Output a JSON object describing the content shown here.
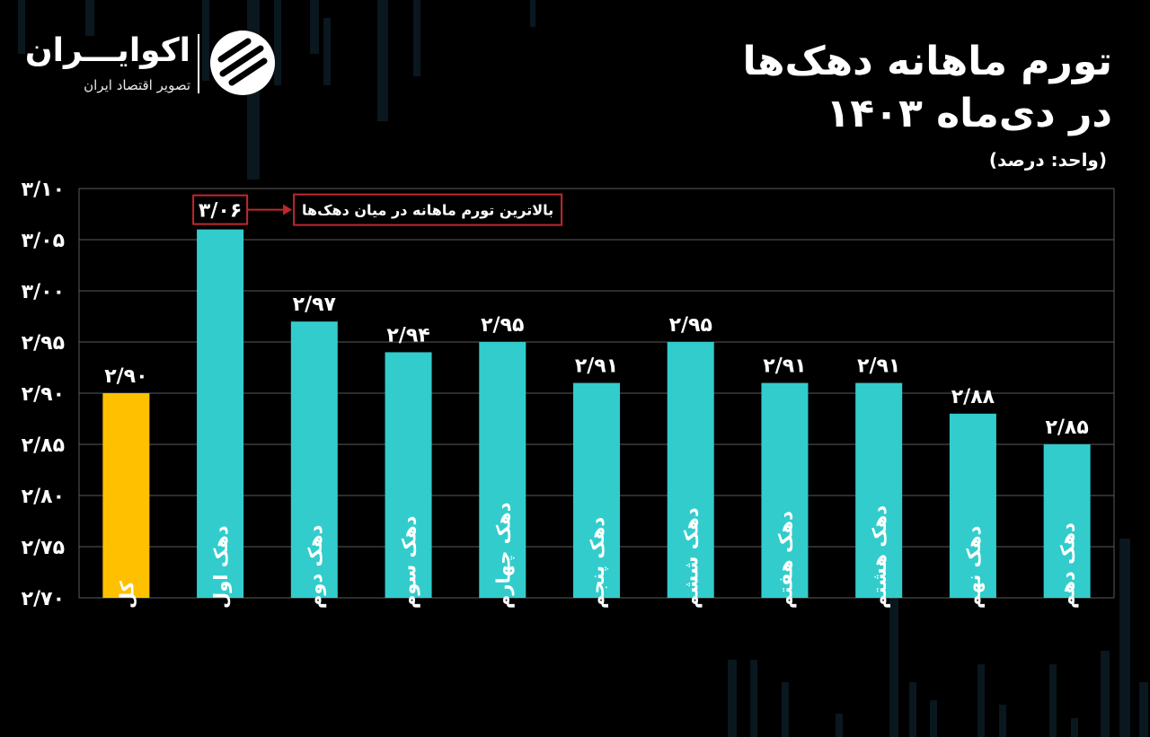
{
  "header": {
    "title_line1": "تورم ماهانه دهک‌ها",
    "title_line2": "در دی‌ماه ۱۴۰۳",
    "unit": "(واحد: درصد)"
  },
  "brand": {
    "name": "اکوایـــران",
    "tagline": "تصویر اقتصاد ایران",
    "logo_icon": "ekoiran-logo-icon"
  },
  "colors": {
    "background": "#000000",
    "bar": "#33cccc",
    "highlight_bar": "#ffc000",
    "annotation": "#c0282d",
    "grid": "#5a5a5a"
  },
  "chart_data": {
    "type": "bar",
    "categories": [
      "کل",
      "دهک اول",
      "دهک دوم",
      "دهک سوم",
      "دهک چهارم",
      "دهک پنجم",
      "دهک ششم",
      "دهک هفتم",
      "دهک هشتم",
      "دهک نهم",
      "دهک دهم"
    ],
    "values": [
      2.9,
      3.06,
      2.97,
      2.94,
      2.95,
      2.91,
      2.95,
      2.91,
      2.91,
      2.88,
      2.85
    ],
    "value_labels": [
      "۲/۹۰",
      "۳/۰۶",
      "۲/۹۷",
      "۲/۹۴",
      "۲/۹۵",
      "۲/۹۱",
      "۲/۹۵",
      "۲/۹۱",
      "۲/۹۱",
      "۲/۸۸",
      "۲/۸۵"
    ],
    "highlight_index": 0,
    "ylim": [
      2.7,
      3.1
    ],
    "yticks": [
      3.1,
      3.05,
      3.0,
      2.95,
      2.9,
      2.85,
      2.8,
      2.75,
      2.7
    ],
    "ytick_labels": [
      "۳/۱۰",
      "۳/۰۵",
      "۳/۰۰",
      "۲/۹۵",
      "۲/۹۰",
      "۲/۸۵",
      "۲/۸۰",
      "۲/۷۵",
      "۲/۷۰"
    ],
    "grid": true,
    "annotation": {
      "text": "بالاترین تورم ماهانه در میان دهک‌ها",
      "target_index": 1
    }
  }
}
